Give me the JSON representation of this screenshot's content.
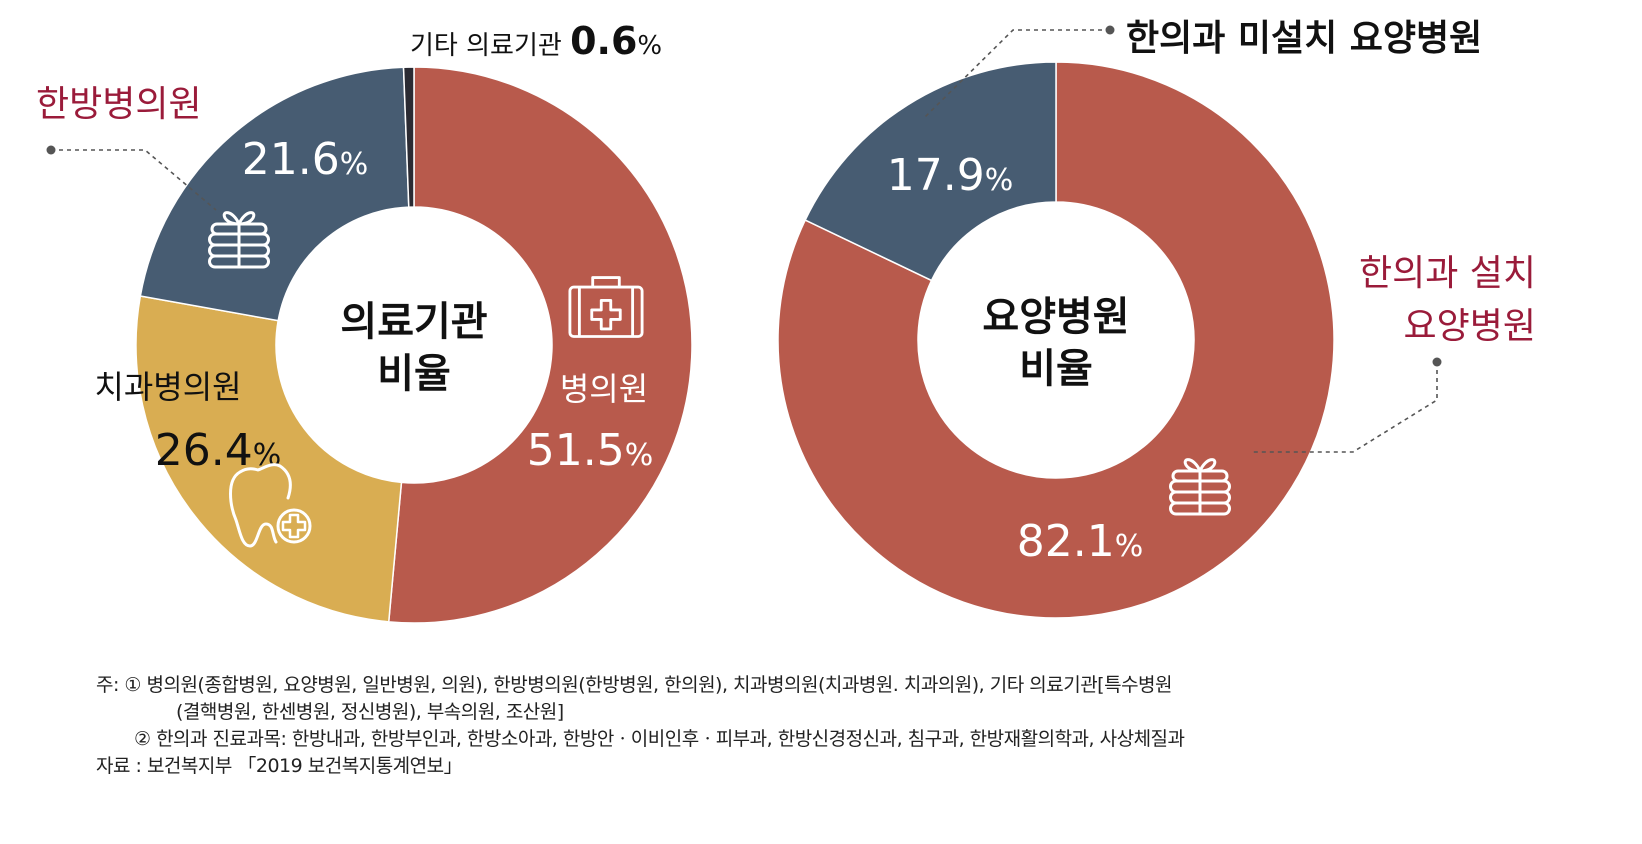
{
  "colors": {
    "hospital": "#B85A4C",
    "korean_medicine": "#475C72",
    "dental": "#D9AD52",
    "other": "#2B2B33",
    "label_dark": "#111111",
    "label_accent": "#9A1B3A",
    "white": "#FFFFFF",
    "leader": "#555555"
  },
  "chart_data": [
    {
      "type": "pie",
      "variant": "donut",
      "center_label": [
        "의료기관",
        "비율"
      ],
      "slices": [
        {
          "name": "병의원",
          "value": 51.5,
          "value_text": "51.5",
          "unit": "%",
          "color": "#B85A4C",
          "icon": "first-aid-kit-icon"
        },
        {
          "name": "치과병의원",
          "value": 26.4,
          "value_text": "26.4",
          "unit": "%",
          "color": "#D9AD52",
          "icon": "tooth-plus-icon"
        },
        {
          "name": "한방병의원",
          "value": 21.6,
          "value_text": "21.6",
          "unit": "%",
          "color": "#475C72",
          "icon": "herbal-package-icon"
        },
        {
          "name": "기타 의료기관",
          "value": 0.6,
          "value_text": "0.6",
          "unit": "%",
          "color": "#2B2B33",
          "icon": ""
        }
      ]
    },
    {
      "type": "pie",
      "variant": "donut",
      "center_label": [
        "요양병원",
        "비율"
      ],
      "slices": [
        {
          "name": "한의과 설치\n요양병원",
          "value": 82.1,
          "value_text": "82.1",
          "unit": "%",
          "color": "#B85A4C",
          "icon": "herbal-package-icon"
        },
        {
          "name": "한의과 미설치 요양병원",
          "value": 17.9,
          "value_text": "17.9",
          "unit": "%",
          "color": "#475C72",
          "icon": ""
        }
      ]
    }
  ],
  "notes": {
    "line1": "주: ① 병의원(종합병원, 요양병원, 일반병원, 의원), 한방병의원(한방병원, 한의원), 치과병의원(치과병원. 치과의원), 기타 의료기관[특수병원",
    "line2": "(결핵병원, 한센병원, 정신병원), 부속의원, 조산원]",
    "line3": "② 한의과 진료과목: 한방내과, 한방부인과, 한방소아과, 한방안ㆍ이비인후ㆍ피부과, 한방신경정신과, 침구과, 한방재활의학과, 사상체질과",
    "line4": "자료 : 보건복지부 「2019 보건복지통계연보」"
  }
}
